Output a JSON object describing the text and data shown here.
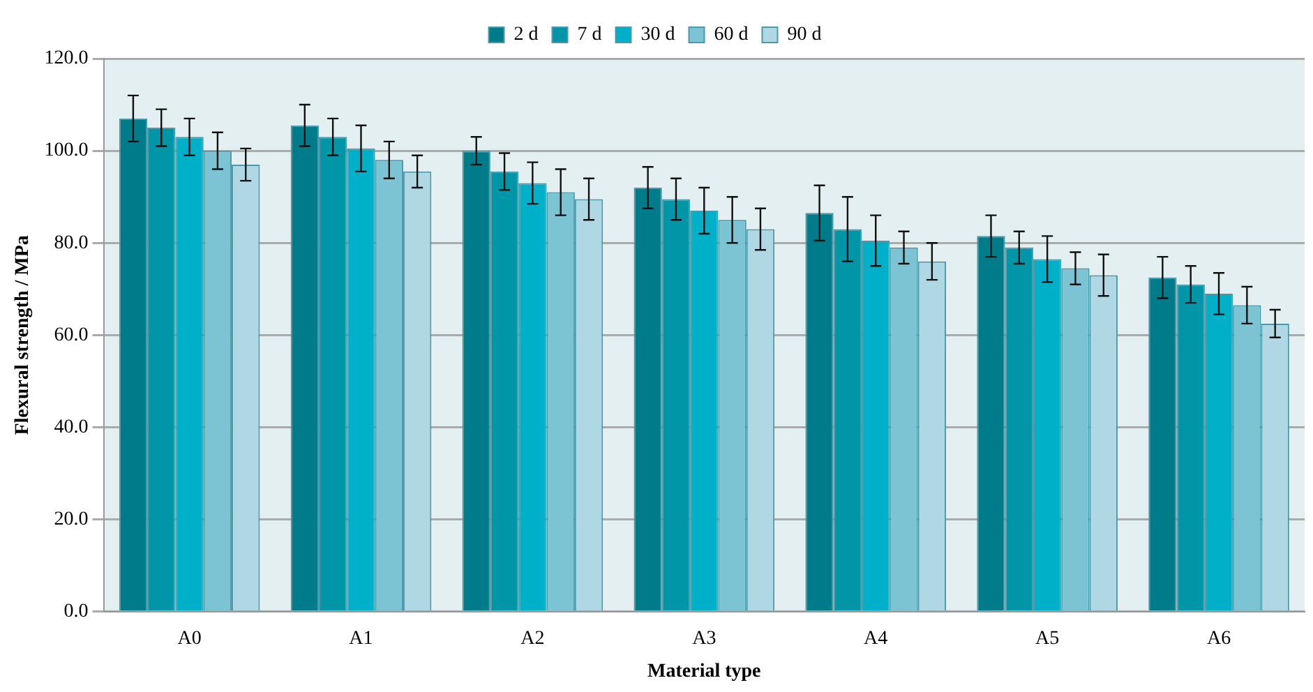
{
  "chart_data": {
    "type": "bar",
    "xlabel": "Material type",
    "ylabel": "Flexural strength / MPa",
    "categories": [
      "A0",
      "A1",
      "A2",
      "A3",
      "A4",
      "A5",
      "A6"
    ],
    "series": [
      {
        "name": "2 d",
        "color": "#007b8a",
        "values": [
          107,
          105.5,
          100,
          92,
          86.5,
          81.5,
          72.5
        ],
        "errors": [
          5,
          4.5,
          3,
          4.5,
          6,
          4.5,
          4.5
        ]
      },
      {
        "name": "7 d",
        "color": "#0096a8",
        "values": [
          105,
          103,
          95.5,
          89.5,
          83,
          79,
          71
        ],
        "errors": [
          4,
          4,
          4,
          4.5,
          7,
          3.5,
          4
        ]
      },
      {
        "name": "30 d",
        "color": "#00b0c8",
        "values": [
          103,
          100.5,
          93,
          87,
          80.5,
          76.5,
          69
        ],
        "errors": [
          4,
          5,
          4.5,
          5,
          5.5,
          5,
          4.5
        ]
      },
      {
        "name": "60 d",
        "color": "#7cc4d4",
        "values": [
          100,
          98,
          91,
          85,
          79,
          74.5,
          66.5
        ],
        "errors": [
          4,
          4,
          5,
          5,
          3.5,
          3.5,
          4
        ]
      },
      {
        "name": "90 d",
        "color": "#b0d8e4",
        "values": [
          97,
          95.5,
          89.5,
          83,
          76,
          73,
          62.5
        ],
        "errors": [
          3.5,
          3.5,
          4.5,
          4.5,
          4,
          4.5,
          3
        ]
      }
    ],
    "ylim": [
      0,
      120
    ],
    "yticks": [
      {
        "value": 0,
        "label": "0.0"
      },
      {
        "value": 20,
        "label": "20.0"
      },
      {
        "value": 40,
        "label": "40.0"
      },
      {
        "value": 60,
        "label": "60.0"
      },
      {
        "value": 80,
        "label": "80.0"
      },
      {
        "value": 100,
        "label": "100.0"
      },
      {
        "value": 120,
        "label": "120.0"
      }
    ],
    "grid": "y",
    "legend": "top"
  }
}
